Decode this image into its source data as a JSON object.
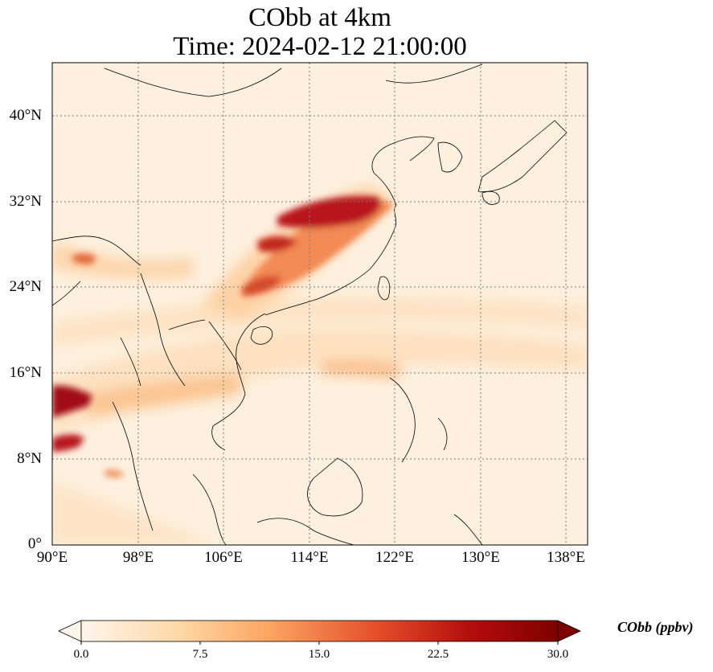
{
  "title": {
    "line1": "CObb at 4km",
    "line2": "Time: 2024-02-12 21:00:00"
  },
  "axes": {
    "lat_ticks": [
      "40°N",
      "32°N",
      "24°N",
      "16°N",
      "8°N",
      "0°"
    ],
    "lon_ticks": [
      "90°E",
      "98°E",
      "106°E",
      "114°E",
      "122°E",
      "130°E",
      "138°E"
    ]
  },
  "colorbar": {
    "label": "CObb (ppbv)",
    "ticks": [
      "0.0",
      "7.5",
      "15.0",
      "22.5",
      "30.0"
    ],
    "colormap": [
      "#fff5eb",
      "#fdd9a8",
      "#fca360",
      "#e54e2a",
      "#b30c0c",
      "#7f0000"
    ],
    "extend": "both"
  }
}
